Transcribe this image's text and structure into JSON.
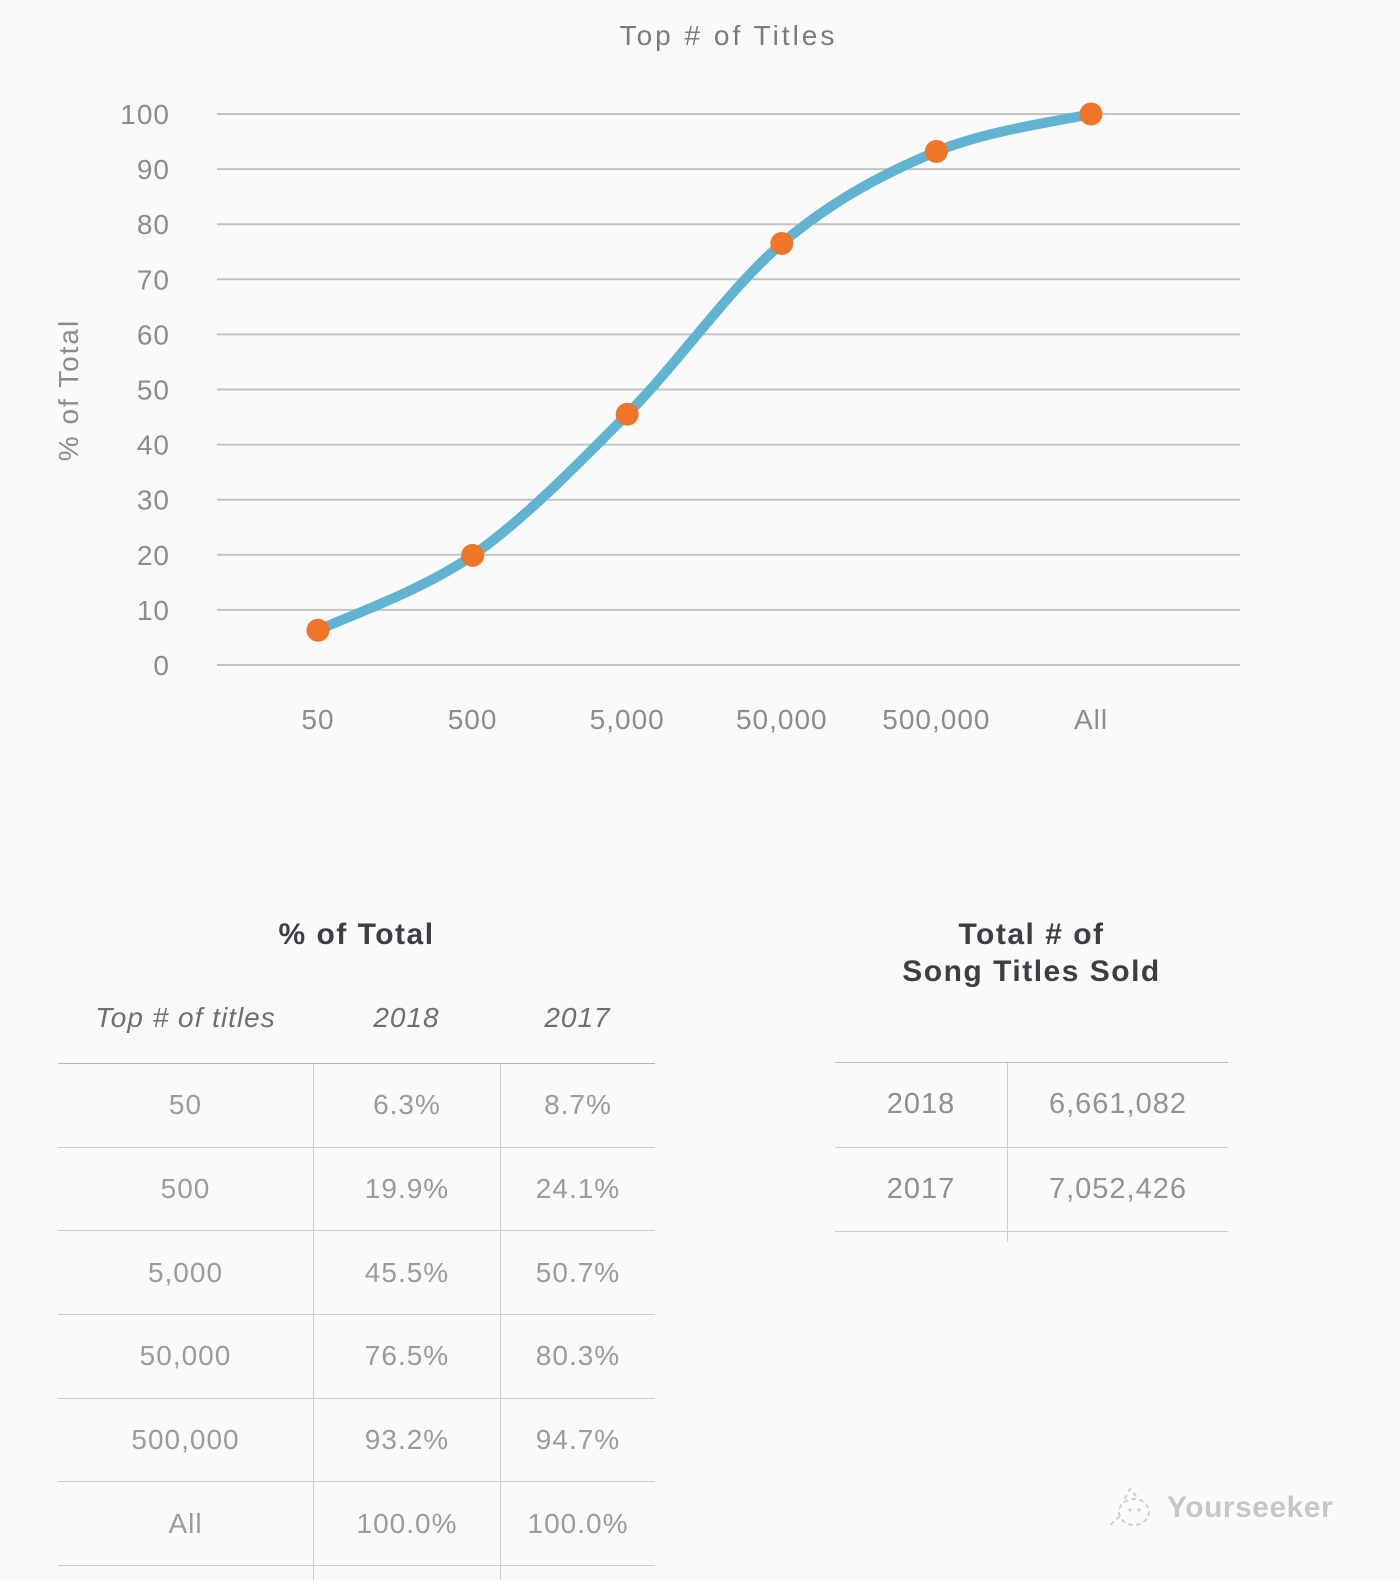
{
  "chart_data": {
    "type": "line",
    "title": "Top # of Titles",
    "xlabel": "",
    "ylabel": "% of Total",
    "categories": [
      "50",
      "500",
      "5,000",
      "50,000",
      "500,000",
      "All"
    ],
    "series": [
      {
        "name": "2018",
        "values": [
          6.3,
          19.9,
          45.5,
          76.5,
          93.2,
          100.0
        ]
      }
    ],
    "ylim": [
      0,
      100
    ],
    "yticks": [
      0,
      10,
      20,
      30,
      40,
      50,
      60,
      70,
      80,
      90,
      100
    ],
    "grid": true,
    "legend": "none",
    "line_color": "#60b4d2",
    "marker_color": "#ef7529",
    "grid_color": "#c3c3c3",
    "tick_color": "#8c8c8c"
  },
  "left_table": {
    "title": "% of Total",
    "col_headers": [
      "Top # of titles",
      "2018",
      "2017"
    ],
    "rows": [
      [
        "50",
        "6.3%",
        "8.7%"
      ],
      [
        "500",
        "19.9%",
        "24.1%"
      ],
      [
        "5,000",
        "45.5%",
        "50.7%"
      ],
      [
        "50,000",
        "76.5%",
        "80.3%"
      ],
      [
        "500,000",
        "93.2%",
        "94.7%"
      ],
      [
        "All",
        "100.0%",
        "100.0%"
      ]
    ]
  },
  "right_table": {
    "title_line1": "Total # of",
    "title_line2": "Song Titles Sold",
    "rows": [
      [
        "2018",
        "6,661,082"
      ],
      [
        "2017",
        "7,052,426"
      ]
    ]
  },
  "watermark": {
    "label": "Yourseeker"
  }
}
